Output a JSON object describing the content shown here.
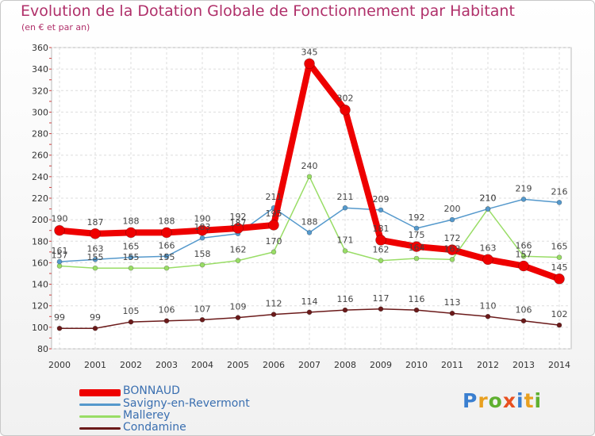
{
  "title": "Evolution de la Dotation Globale de Fonctionnement par Habitant",
  "subtitle": "(en € et par an)",
  "logo": "Proxiti",
  "chart_data": {
    "type": "line",
    "title": "Evolution de la Dotation Globale de Fonctionnement par Habitant",
    "ylabel": "(en € et par an)",
    "xlabel": "",
    "ylim": [
      80,
      360
    ],
    "yticks": [
      80,
      100,
      120,
      140,
      160,
      180,
      200,
      220,
      240,
      260,
      280,
      300,
      320,
      340,
      360
    ],
    "categories": [
      "2000",
      "2001",
      "2002",
      "2003",
      "2004",
      "2005",
      "2006",
      "2007",
      "2008",
      "2009",
      "2010",
      "2011",
      "2012",
      "2013",
      "2014"
    ],
    "grid": true,
    "legend_position": "bottom-left",
    "series": [
      {
        "name": "Condamine",
        "color": "#6b1a1a",
        "values": [
          99,
          99,
          105,
          106,
          107,
          109,
          112,
          114,
          116,
          117,
          116,
          113,
          110,
          106,
          102
        ]
      },
      {
        "name": "Mallerey",
        "color": "#99dd66",
        "values": [
          157,
          155,
          155,
          155,
          158,
          162,
          170,
          240,
          171,
          162,
          164,
          163,
          210,
          166,
          165
        ]
      },
      {
        "name": "Savigny-en-Revermont",
        "color": "#5599cc",
        "values": [
          161,
          163,
          165,
          166,
          183,
          187,
          211,
          188,
          211,
          209,
          192,
          200,
          210,
          219,
          216
        ]
      },
      {
        "name": "BONNAUD",
        "color": "#ee0000",
        "values": [
          190,
          187,
          188,
          188,
          190,
          192,
          195,
          345,
          302,
          181,
          175,
          172,
          163,
          157,
          145
        ]
      }
    ],
    "data_labels": [
      {
        "series": "BONNAUD",
        "labels": [
          "190",
          "187",
          "188",
          "188",
          "190",
          "192",
          "195",
          "345",
          "302",
          "181",
          "175",
          "172",
          "163",
          "157",
          "145"
        ]
      },
      {
        "series": "Savigny-en-Revermont",
        "labels": [
          "161",
          "163",
          "165",
          "166",
          "183",
          "187",
          "211",
          "188",
          "211",
          "209",
          "192",
          "200",
          "210",
          "219",
          "216"
        ]
      },
      {
        "series": "Mallerey",
        "labels": [
          "157",
          "155",
          "155",
          "155",
          "158",
          "162",
          "170",
          "240",
          "171",
          "162",
          "164",
          "163",
          "210",
          "166",
          "165"
        ]
      },
      {
        "series": "Condamine",
        "labels": [
          "99",
          "99",
          "105",
          "106",
          "107",
          "109",
          "112",
          "114",
          "116",
          "117",
          "116",
          "113",
          "110",
          "106",
          "102"
        ]
      }
    ]
  },
  "legend": [
    {
      "label": "BONNAUD",
      "color": "#ee0000"
    },
    {
      "label": "Savigny-en-Revermont",
      "color": "#5599cc"
    },
    {
      "label": "Mallerey",
      "color": "#99dd66"
    },
    {
      "label": "Condamine",
      "color": "#6b1a1a"
    }
  ]
}
